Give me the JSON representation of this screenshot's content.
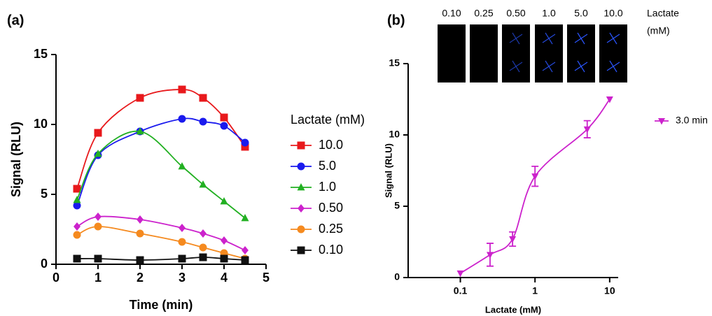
{
  "chart_data": [
    {
      "type": "line",
      "panel_label": "(a)",
      "x_label": "Time (min)",
      "y_label": "Signal (RLU)",
      "legend_title": "Lactate (mM)",
      "x": [
        0.5,
        1,
        2,
        3,
        3.5,
        4,
        4.5
      ],
      "xlim": [
        0,
        5
      ],
      "xticks": [
        0,
        1,
        2,
        3,
        4,
        5
      ],
      "ylim": [
        0,
        15
      ],
      "yticks": [
        0,
        5,
        10,
        15
      ],
      "series": [
        {
          "name": "10.0",
          "color": "#e8191c",
          "marker": "square",
          "values": [
            5.4,
            9.4,
            11.9,
            12.5,
            11.9,
            10.5,
            8.4
          ]
        },
        {
          "name": "5.0",
          "color": "#1a1aee",
          "marker": "circle",
          "values": [
            4.2,
            7.8,
            9.5,
            10.4,
            10.2,
            9.9,
            8.7
          ]
        },
        {
          "name": "1.0",
          "color": "#22b022",
          "marker": "triangle",
          "values": [
            4.6,
            7.9,
            9.5,
            7.0,
            5.7,
            4.5,
            3.3
          ]
        },
        {
          "name": "0.50",
          "color": "#cc22cc",
          "marker": "diamond",
          "values": [
            2.7,
            3.4,
            3.2,
            2.6,
            2.2,
            1.7,
            1.0
          ]
        },
        {
          "name": "0.25",
          "color": "#f58a1f",
          "marker": "circle",
          "values": [
            2.1,
            2.7,
            2.2,
            1.6,
            1.2,
            0.8,
            0.4
          ]
        },
        {
          "name": "0.10",
          "color": "#111111",
          "marker": "square",
          "values": [
            0.4,
            0.4,
            0.3,
            0.4,
            0.5,
            0.4,
            0.3
          ]
        }
      ]
    },
    {
      "type": "scatter",
      "panel_label": "(b)",
      "x_label": "Lactate (mM)",
      "y_label": "Signal (RLU)",
      "xscale": "log",
      "xlim": [
        0.02,
        13
      ],
      "xticks": [
        0.1,
        1,
        10
      ],
      "ylim": [
        0,
        15
      ],
      "yticks": [
        0,
        5,
        10,
        15
      ],
      "x": [
        0.1,
        0.25,
        0.5,
        1,
        5,
        10
      ],
      "series": [
        {
          "name": "3.0 min",
          "color": "#cc22cc",
          "marker": "triangle-down",
          "values": [
            0.3,
            1.6,
            2.7,
            7.1,
            10.4,
            12.5
          ],
          "errors": [
            0,
            0.8,
            0.5,
            0.7,
            0.6,
            0
          ]
        }
      ],
      "image_labels": [
        "0.10",
        "0.25",
        "0.50",
        "1.0",
        "5.0",
        "10.0"
      ],
      "image_unit_lines": [
        "Lactate",
        "(mM)"
      ]
    }
  ]
}
